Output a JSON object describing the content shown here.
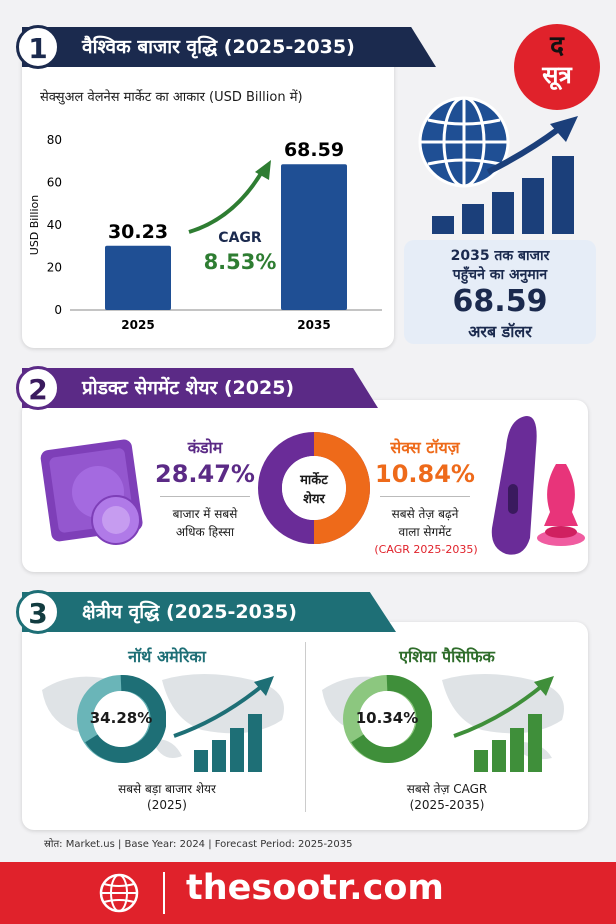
{
  "logo": {
    "line1": "द",
    "line2": "सूत्र"
  },
  "section1": {
    "number": "1",
    "title": "वैश्विक बाजार वृद्धि (2025-2035)",
    "subtitle": "सेक्सुअल वेलनेस मार्केट का आकार (USD Billion में)",
    "cagr_label": "CAGR",
    "cagr_value": "8.53%",
    "forecast_line1": "2035 तक बाजार",
    "forecast_line2": "पहुँचने का अनुमान",
    "forecast_value": "68.59",
    "forecast_unit": "अरब डॉलर"
  },
  "chart_data": {
    "type": "bar",
    "categories": [
      "2025",
      "2035"
    ],
    "values": [
      30.23,
      68.59
    ],
    "value_labels": [
      "30.23",
      "68.59"
    ],
    "ylabel": "USD Billion",
    "ylim": [
      0,
      80
    ],
    "yticks": [
      "0",
      "20",
      "40",
      "60",
      "80"
    ],
    "grid": false
  },
  "section2": {
    "number": "2",
    "title": "प्रोडक्ट सेगमेंट शेयर (2025)",
    "condom_label": "कंडोम",
    "condom_value": "28.47%",
    "condom_desc1": "बाजार में सबसे",
    "condom_desc2": "अधिक हिस्सा",
    "donut_line1": "मार्केट",
    "donut_line2": "शेयर",
    "toys_label": "सेक्स टॉयज़",
    "toys_value": "10.84%",
    "toys_desc1": "सबसे तेज़ बढ़ने",
    "toys_desc2": "वाला सेगमेंट",
    "toys_desc3": "(CAGR 2025-2035)"
  },
  "section3": {
    "number": "3",
    "title": "क्षेत्रीय वृद्धि (2025-2035)",
    "na_label": "नॉर्थ अमेरिका",
    "na_value": "34.28%",
    "na_desc1": "सबसे बड़ा बाजार शेयर",
    "na_desc2": "(2025)",
    "ap_label": "एशिया पैसिफिक",
    "ap_value": "10.34%",
    "ap_desc1": "सबसे तेज़ CAGR",
    "ap_desc2": "(2025-2035)"
  },
  "source": "स्रोत: Market.us | Base Year: 2024 | Forecast Period: 2025-2035",
  "footer": {
    "site": "thesootr.com"
  },
  "colors": {
    "navy": "#1b2a4e",
    "blue": "#1f4f94",
    "purple": "#5b2a86",
    "orange": "#ee6a1a",
    "teal": "#1e6f76",
    "green": "#3f8f3a",
    "red": "#e0222b"
  }
}
